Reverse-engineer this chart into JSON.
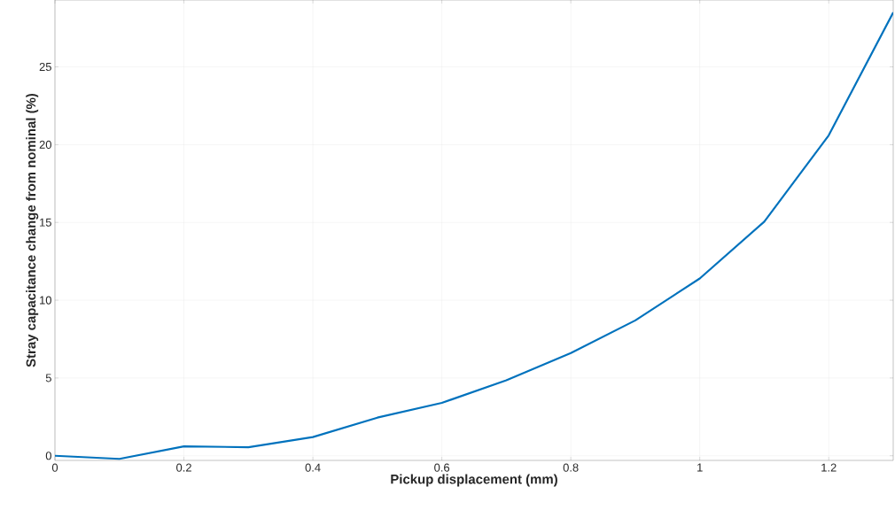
{
  "chart_data": {
    "type": "line",
    "xlabel": "Pickup displacement (mm)",
    "ylabel": "Stray capacitance change from nominal (%)",
    "x": [
      0,
      0.1,
      0.2,
      0.3,
      0.4,
      0.5,
      0.6,
      0.7,
      0.8,
      0.9,
      1.0,
      1.1,
      1.2,
      1.3
    ],
    "series": [
      {
        "color": "#0072bd",
        "values": [
          0,
          -0.2,
          0.6,
          0.55,
          1.2,
          2.45,
          3.4,
          4.85,
          6.6,
          8.7,
          11.4,
          15.05,
          20.6,
          28.5
        ]
      }
    ],
    "xlim": [
      0,
      1.3
    ],
    "ylim": [
      -0.3,
      29.3
    ],
    "xticks": [
      0,
      0.2,
      0.4,
      0.6,
      0.8,
      1,
      1.2
    ],
    "yticks": [
      0,
      5,
      10,
      15,
      20,
      25
    ],
    "grid": true,
    "marker": "none",
    "line_style": "solid"
  }
}
